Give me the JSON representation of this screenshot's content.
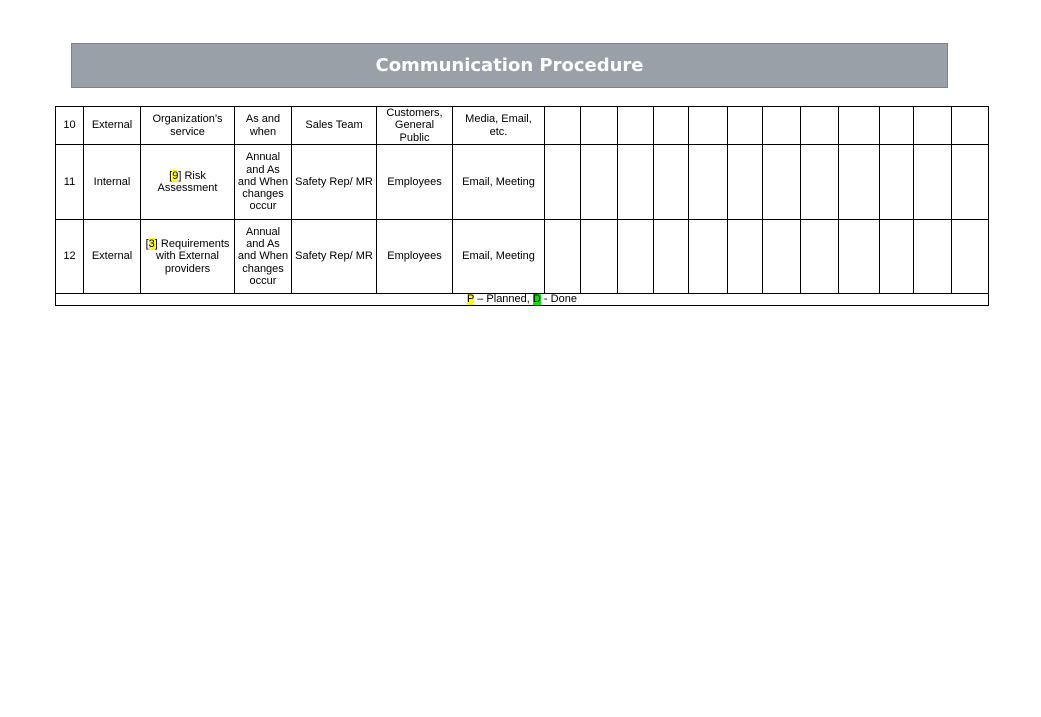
{
  "title": "Communication Procedure",
  "rows": [
    {
      "no": "10",
      "type": "External",
      "ref": "",
      "topic": "Organization’s service",
      "when": "As and when",
      "who": "Sales Team",
      "whom": "Customers, General Public",
      "how": "Media, Email, etc."
    },
    {
      "no": "11",
      "type": "Internal",
      "ref": "9",
      "topic": "Risk Assessment",
      "when": "Annual and As and When changes occur",
      "who": "Safety Rep/ MR",
      "whom": "Employees",
      "how": "Email, Meeting"
    },
    {
      "no": "12",
      "type": "External",
      "ref": "3",
      "topic": "Requirements with External providers",
      "when": "Annual and As and When changes occur",
      "who": "Safety Rep/ MR",
      "whom": "Employees",
      "how": "Email, Meeting"
    }
  ],
  "empty_columns": 12,
  "legend": {
    "p": "P",
    "p_text": "– Planned,",
    "d": "D",
    "d_text": "- Done"
  },
  "colors": {
    "title_bg": "#9aa0a8",
    "planned": "#ffff00",
    "done": "#00e600"
  }
}
